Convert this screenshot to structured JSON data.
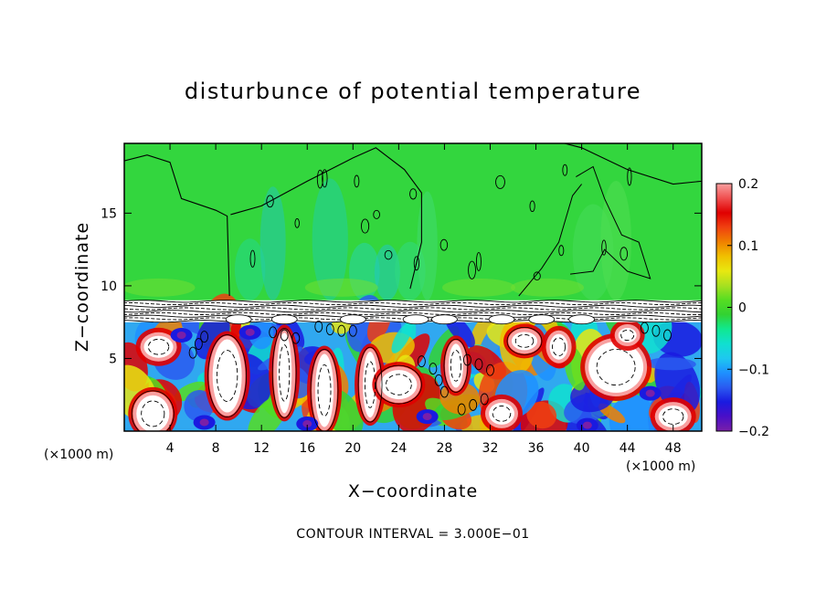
{
  "chart_data": {
    "type": "heatmap",
    "title": "disturbunce of potential temperature",
    "xlabel": "X−coordinate",
    "ylabel": "Z−coordinate",
    "x_unit_label": "(×1000 m)",
    "x_ticks": [
      4,
      8,
      12,
      16,
      20,
      24,
      28,
      32,
      36,
      40,
      44,
      48
    ],
    "y_ticks": [
      5,
      10,
      15
    ],
    "xlim": [
      0,
      50.5
    ],
    "ylim": [
      0,
      19.8
    ],
    "annotation": "CONTOUR INTERVAL = 3.000E−01",
    "colorbar": {
      "range": [
        -0.2,
        0.2
      ],
      "tick_labels": [
        "0.2",
        "0.1",
        "0",
        "−0.1",
        "−0.2"
      ],
      "tick_values": [
        0.2,
        0.1,
        0,
        -0.1,
        -0.2
      ],
      "colors": [
        "#7a1fa8",
        "#4a0fc8",
        "#1a1ae0",
        "#2a5af0",
        "#1e90ff",
        "#1ec8f0",
        "#10e0d0",
        "#10e890",
        "#32d232",
        "#55dd22",
        "#a8e020",
        "#e8e810",
        "#f0c000",
        "#f08000",
        "#f04010",
        "#e00000",
        "#f05050",
        "#f8a0a0"
      ]
    },
    "field_regions": [
      {
        "z_range": [
          9,
          19.8
        ],
        "value": 0.0,
        "note": "upper layer near zero"
      },
      {
        "z_range": [
          7.5,
          9
        ],
        "value": null,
        "note": "dense contour band"
      },
      {
        "z_range": [
          0,
          7.5
        ],
        "value": null,
        "note": "strong positive and negative cells"
      }
    ]
  }
}
